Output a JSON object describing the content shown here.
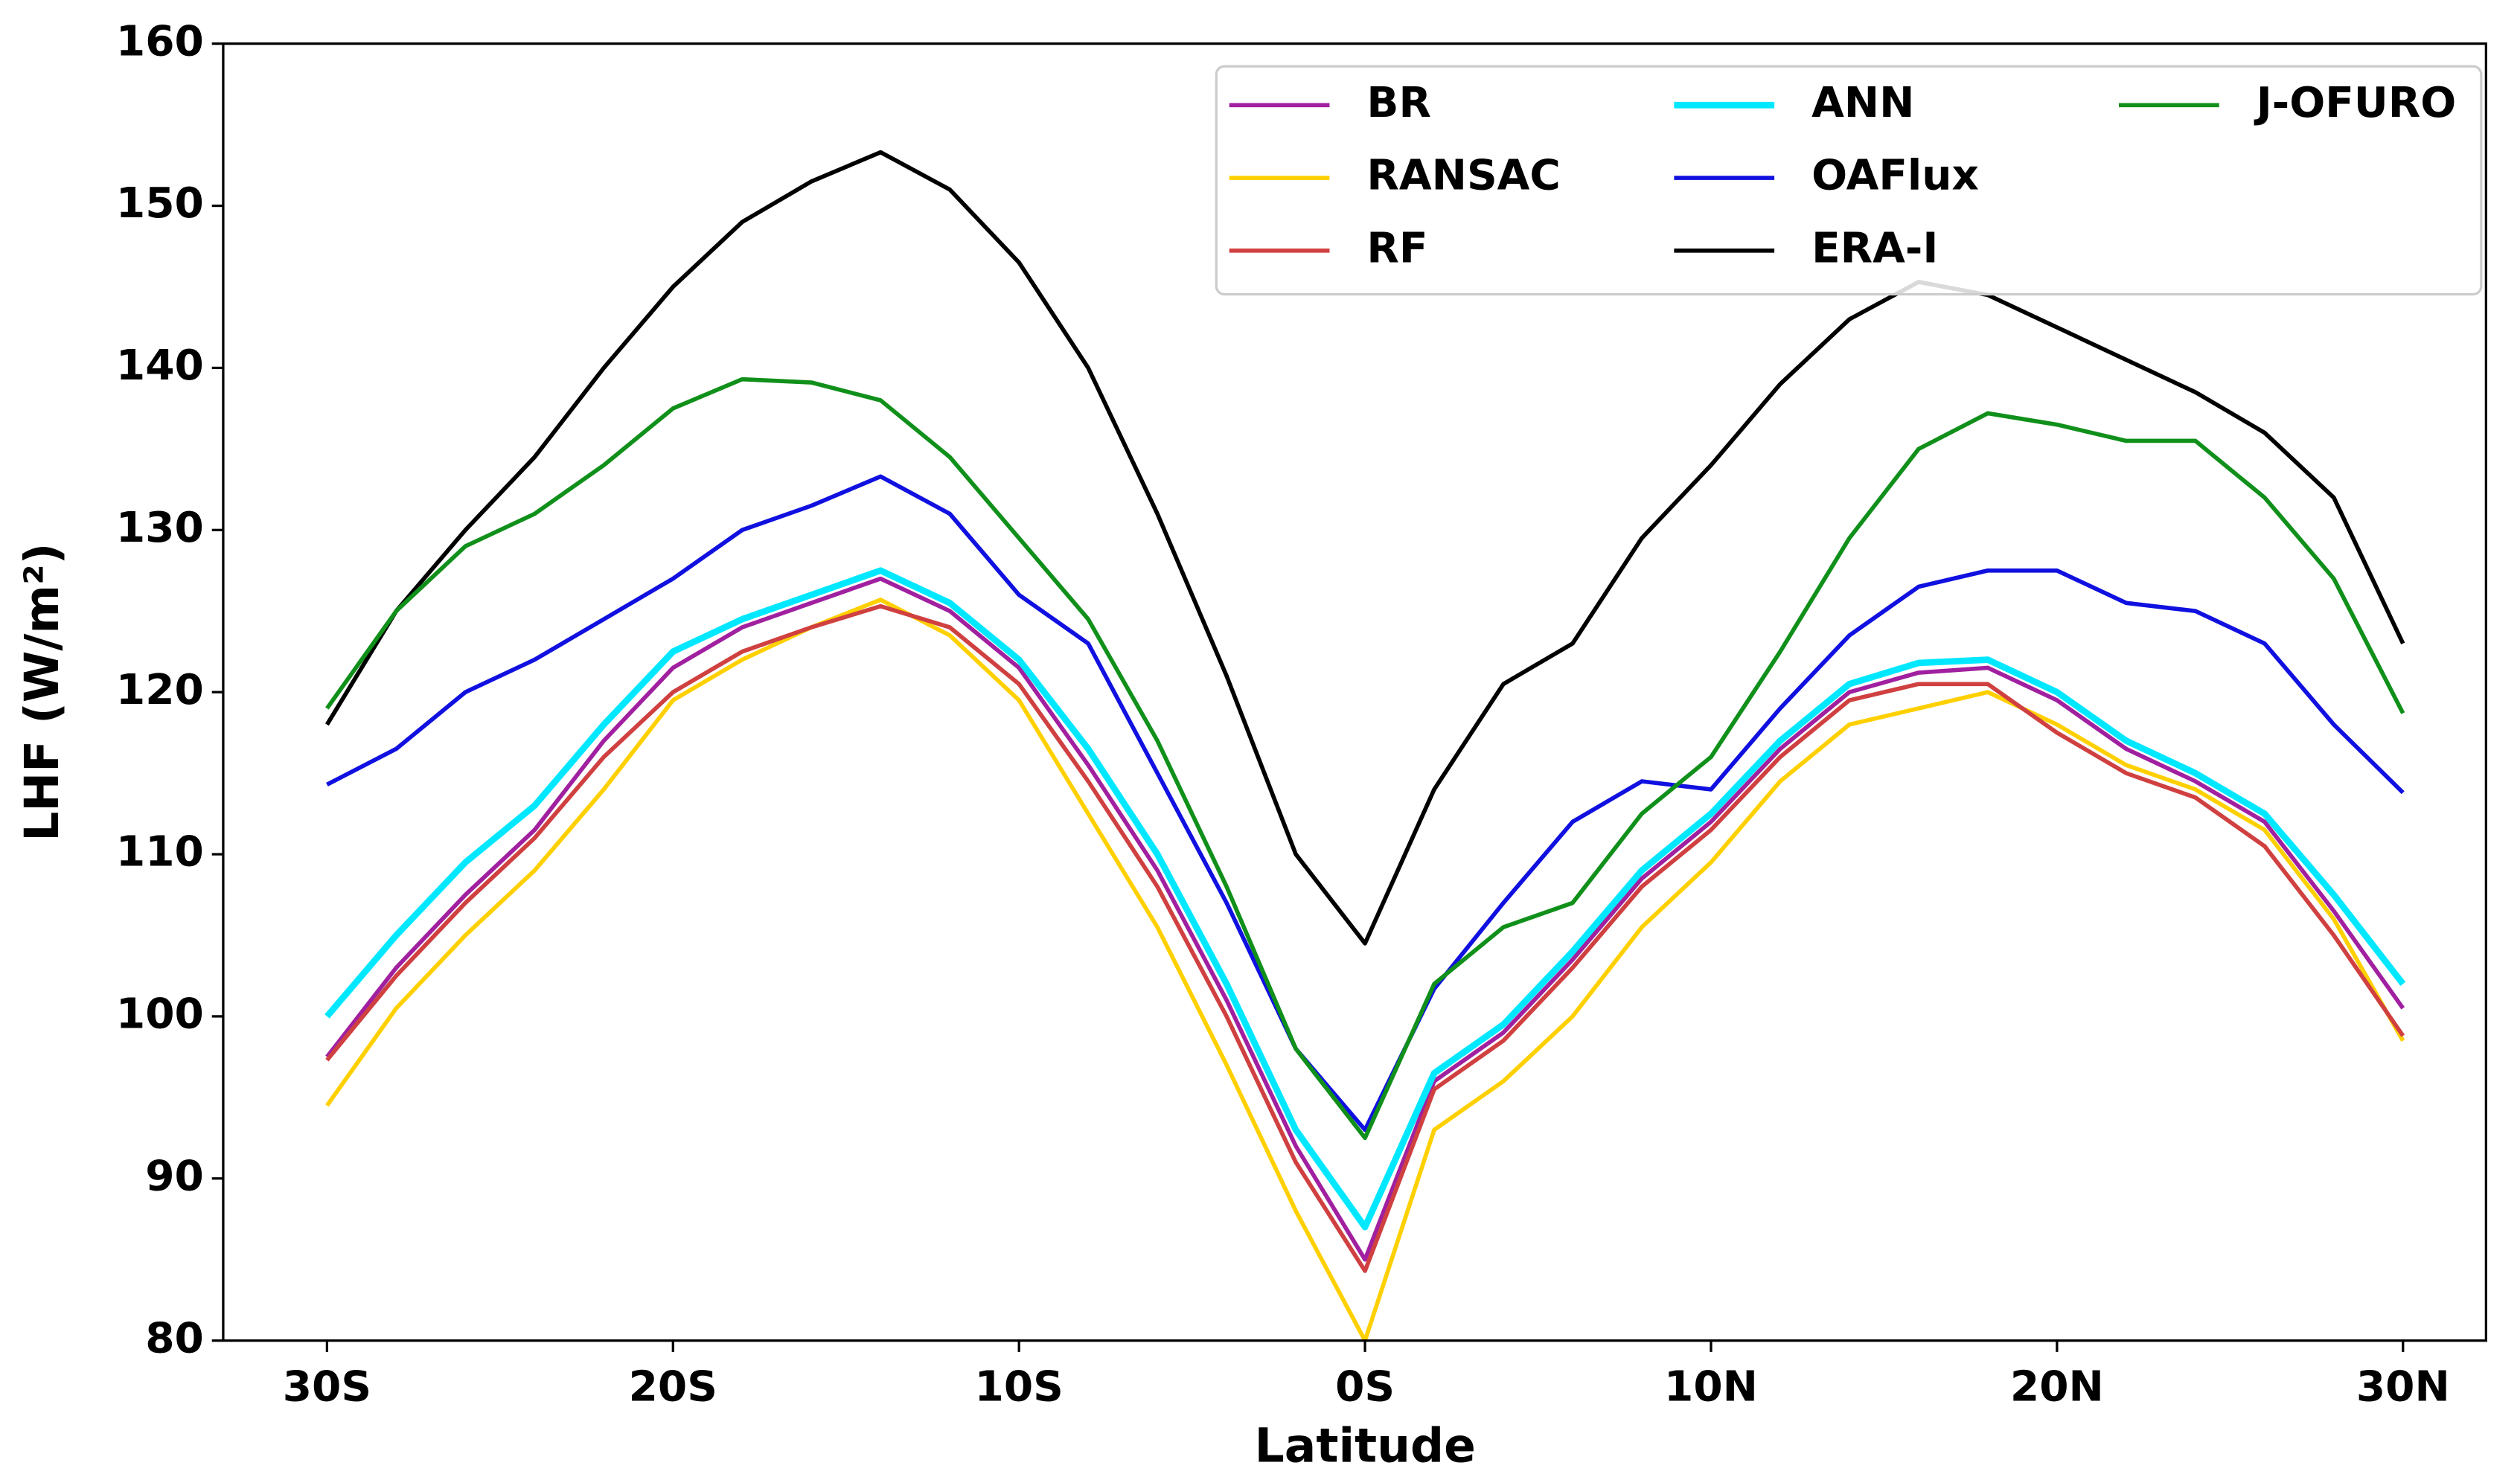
{
  "chart_data": {
    "type": "line",
    "xlabel": "Latitude",
    "ylabel": "LHF (W/m²)",
    "xlim": [
      -33,
      32.4
    ],
    "ylim": [
      80,
      160
    ],
    "xticks": [
      {
        "value": -30,
        "label": "30S"
      },
      {
        "value": -20,
        "label": "20S"
      },
      {
        "value": -10,
        "label": "10S"
      },
      {
        "value": 0,
        "label": "0S"
      },
      {
        "value": 10,
        "label": "10N"
      },
      {
        "value": 20,
        "label": "20N"
      },
      {
        "value": 30,
        "label": "30N"
      }
    ],
    "yticks": [
      80,
      90,
      100,
      110,
      120,
      130,
      140,
      150,
      160
    ],
    "legend": "upper right",
    "x": [
      -30,
      -28,
      -26,
      -24,
      -22,
      -20,
      -18,
      -16,
      -14,
      -12,
      -10,
      -8,
      -6,
      -4,
      -2,
      0,
      2,
      4,
      6,
      8,
      10,
      12,
      14,
      16,
      18,
      20,
      22,
      24,
      26,
      28,
      30
    ],
    "series": [
      {
        "name": "BR",
        "color": "#a020a0",
        "values": [
          97.5,
          103,
          107.5,
          111.5,
          117,
          121.5,
          124,
          125.5,
          127,
          125,
          121.5,
          115.5,
          109,
          101,
          92,
          85,
          96,
          99,
          103.5,
          108.5,
          112,
          116.5,
          120,
          121.2,
          121.5,
          119.5,
          116.5,
          114.5,
          112,
          106.5,
          100.5
        ]
      },
      {
        "name": "RANSAC",
        "color": "#ffd000",
        "values": [
          94.5,
          100.5,
          105,
          109,
          114,
          119.5,
          122,
          124,
          125.7,
          123.5,
          119.5,
          112.5,
          105.5,
          97,
          88,
          80,
          93,
          96,
          100,
          105.5,
          109.5,
          114.5,
          118,
          119,
          120,
          118,
          115.5,
          114,
          111.5,
          106,
          98.5
        ]
      },
      {
        "name": "RF",
        "color": "#d04040",
        "values": [
          97.3,
          102.5,
          107,
          111,
          116,
          120,
          122.5,
          124,
          125.3,
          124,
          120.5,
          114.5,
          108,
          100,
          91,
          84.3,
          95.5,
          98.5,
          103,
          108,
          111.5,
          116,
          119.5,
          120.5,
          120.5,
          117.5,
          115,
          113.5,
          110.5,
          105,
          98.8
        ]
      },
      {
        "name": "ANN",
        "color": "#00e8ff",
        "values": [
          100,
          105,
          109.5,
          113,
          118,
          122.5,
          124.5,
          126,
          127.5,
          125.5,
          122,
          116.5,
          110,
          102,
          93,
          87,
          96.5,
          99.5,
          104,
          109,
          112.5,
          117,
          120.5,
          121.8,
          122,
          120,
          117,
          115,
          112.5,
          107.5,
          102
        ]
      },
      {
        "name": "OAFlux",
        "color": "#1010e0",
        "values": [
          114.3,
          116.5,
          120,
          122,
          124.5,
          127,
          130,
          131.5,
          133.3,
          131,
          126,
          123,
          115,
          107,
          98,
          93,
          101.7,
          107,
          112,
          114.5,
          114,
          119,
          123.5,
          126.5,
          127.5,
          127.5,
          125.5,
          125,
          123,
          118,
          113.8
        ]
      },
      {
        "name": "ERA-I",
        "color": "#000000",
        "values": [
          118,
          125,
          130,
          134.5,
          140,
          145,
          149,
          151.5,
          153.3,
          151,
          146.5,
          140,
          131,
          121,
          110,
          104.5,
          114,
          120.5,
          123,
          129.5,
          134,
          139,
          143,
          145.3,
          144.5,
          142.5,
          140.5,
          138.5,
          136,
          132,
          123
        ]
      },
      {
        "name": "J-OFURO",
        "color": "#10901a",
        "values": [
          119,
          125,
          129,
          131,
          134,
          137.5,
          139.3,
          139.1,
          138,
          134.5,
          129.5,
          124.5,
          117,
          108,
          98,
          92.5,
          102,
          105.5,
          107,
          112.5,
          116,
          122.5,
          129.5,
          135,
          137.2,
          136.5,
          135.5,
          135.5,
          132,
          127,
          118.7
        ]
      }
    ]
  }
}
